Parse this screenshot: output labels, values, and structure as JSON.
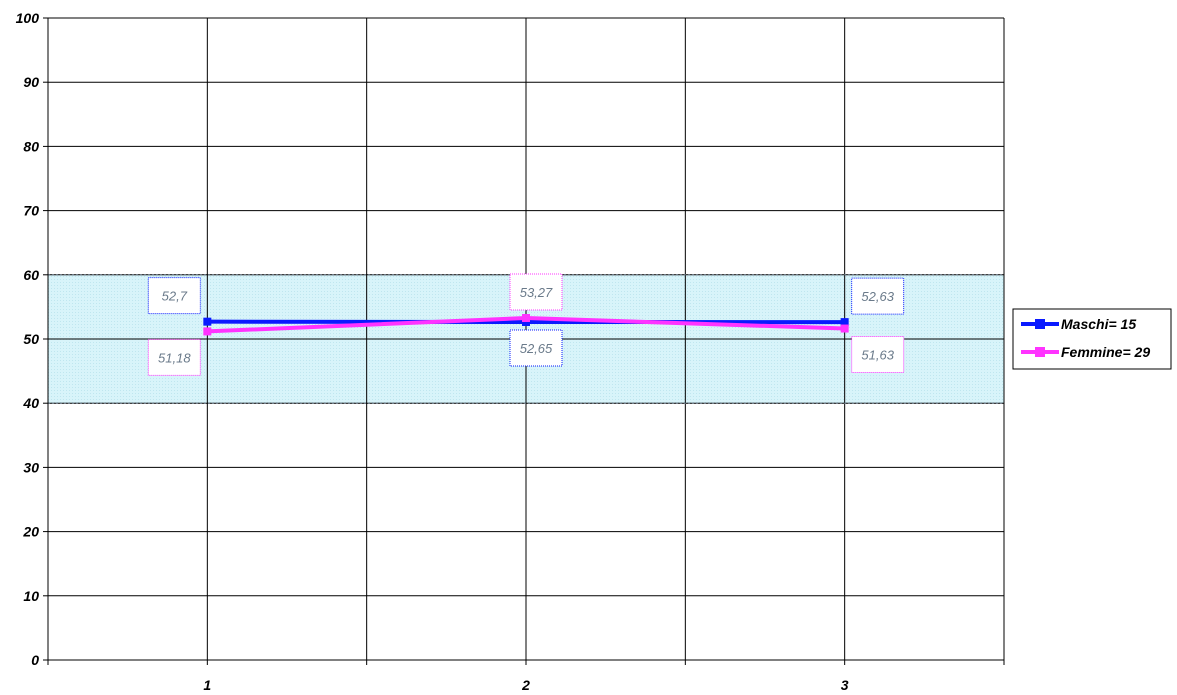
{
  "chart_data": {
    "type": "line",
    "categories": [
      "1",
      "2",
      "3"
    ],
    "series": [
      {
        "name": "Maschi= 15",
        "values": [
          52.7,
          52.65,
          52.63
        ],
        "labels": [
          "52,7",
          "52,65",
          "52,63"
        ],
        "color": "#0a1aff"
      },
      {
        "name": "Femmine= 29",
        "values": [
          51.18,
          53.27,
          51.63
        ],
        "labels": [
          "51,18",
          "53,27",
          "51,63"
        ],
        "color": "#ff33ff"
      }
    ],
    "ylim": [
      0,
      100
    ],
    "yticks": [
      "0",
      "10",
      "20",
      "30",
      "40",
      "50",
      "60",
      "70",
      "80",
      "90",
      "100"
    ],
    "band": {
      "from": 40,
      "to": 60,
      "color": "#d8f4fa"
    },
    "grid": true,
    "legend": "right",
    "title": "",
    "xlabel": "",
    "ylabel": ""
  }
}
